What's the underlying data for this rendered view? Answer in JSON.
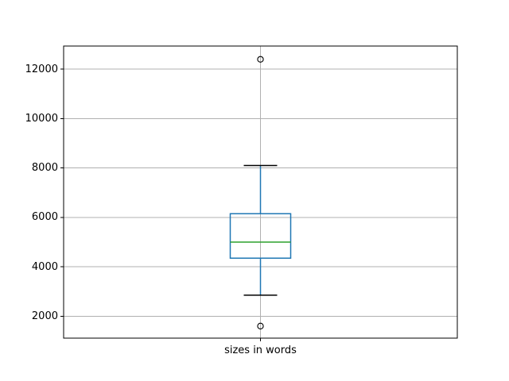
{
  "figure": {
    "background": "#ffffff"
  },
  "chart_data": {
    "type": "boxplot",
    "title": "",
    "xlabel": "",
    "ylabel": "",
    "categories": [
      "sizes in words"
    ],
    "series": [
      {
        "name": "sizes in words",
        "whislo": 2850,
        "q1": 4350,
        "med": 5000,
        "q3": 6150,
        "whishi": 8100,
        "fliers": [
          1600,
          12400
        ]
      }
    ],
    "ylim": [
      1112,
      12938
    ],
    "yticks": [
      2000,
      4000,
      6000,
      8000,
      10000,
      12000
    ],
    "grid": true,
    "legend": "none",
    "colors": {
      "box": "#1f77b4",
      "whisker": "#1f77b4",
      "median": "#2ca02c",
      "cap": "#000000",
      "flier_edge": "#000000",
      "grid": "#b0b0b0",
      "spine": "#000000",
      "tick": "#000000",
      "tick_label": "#000000"
    }
  }
}
